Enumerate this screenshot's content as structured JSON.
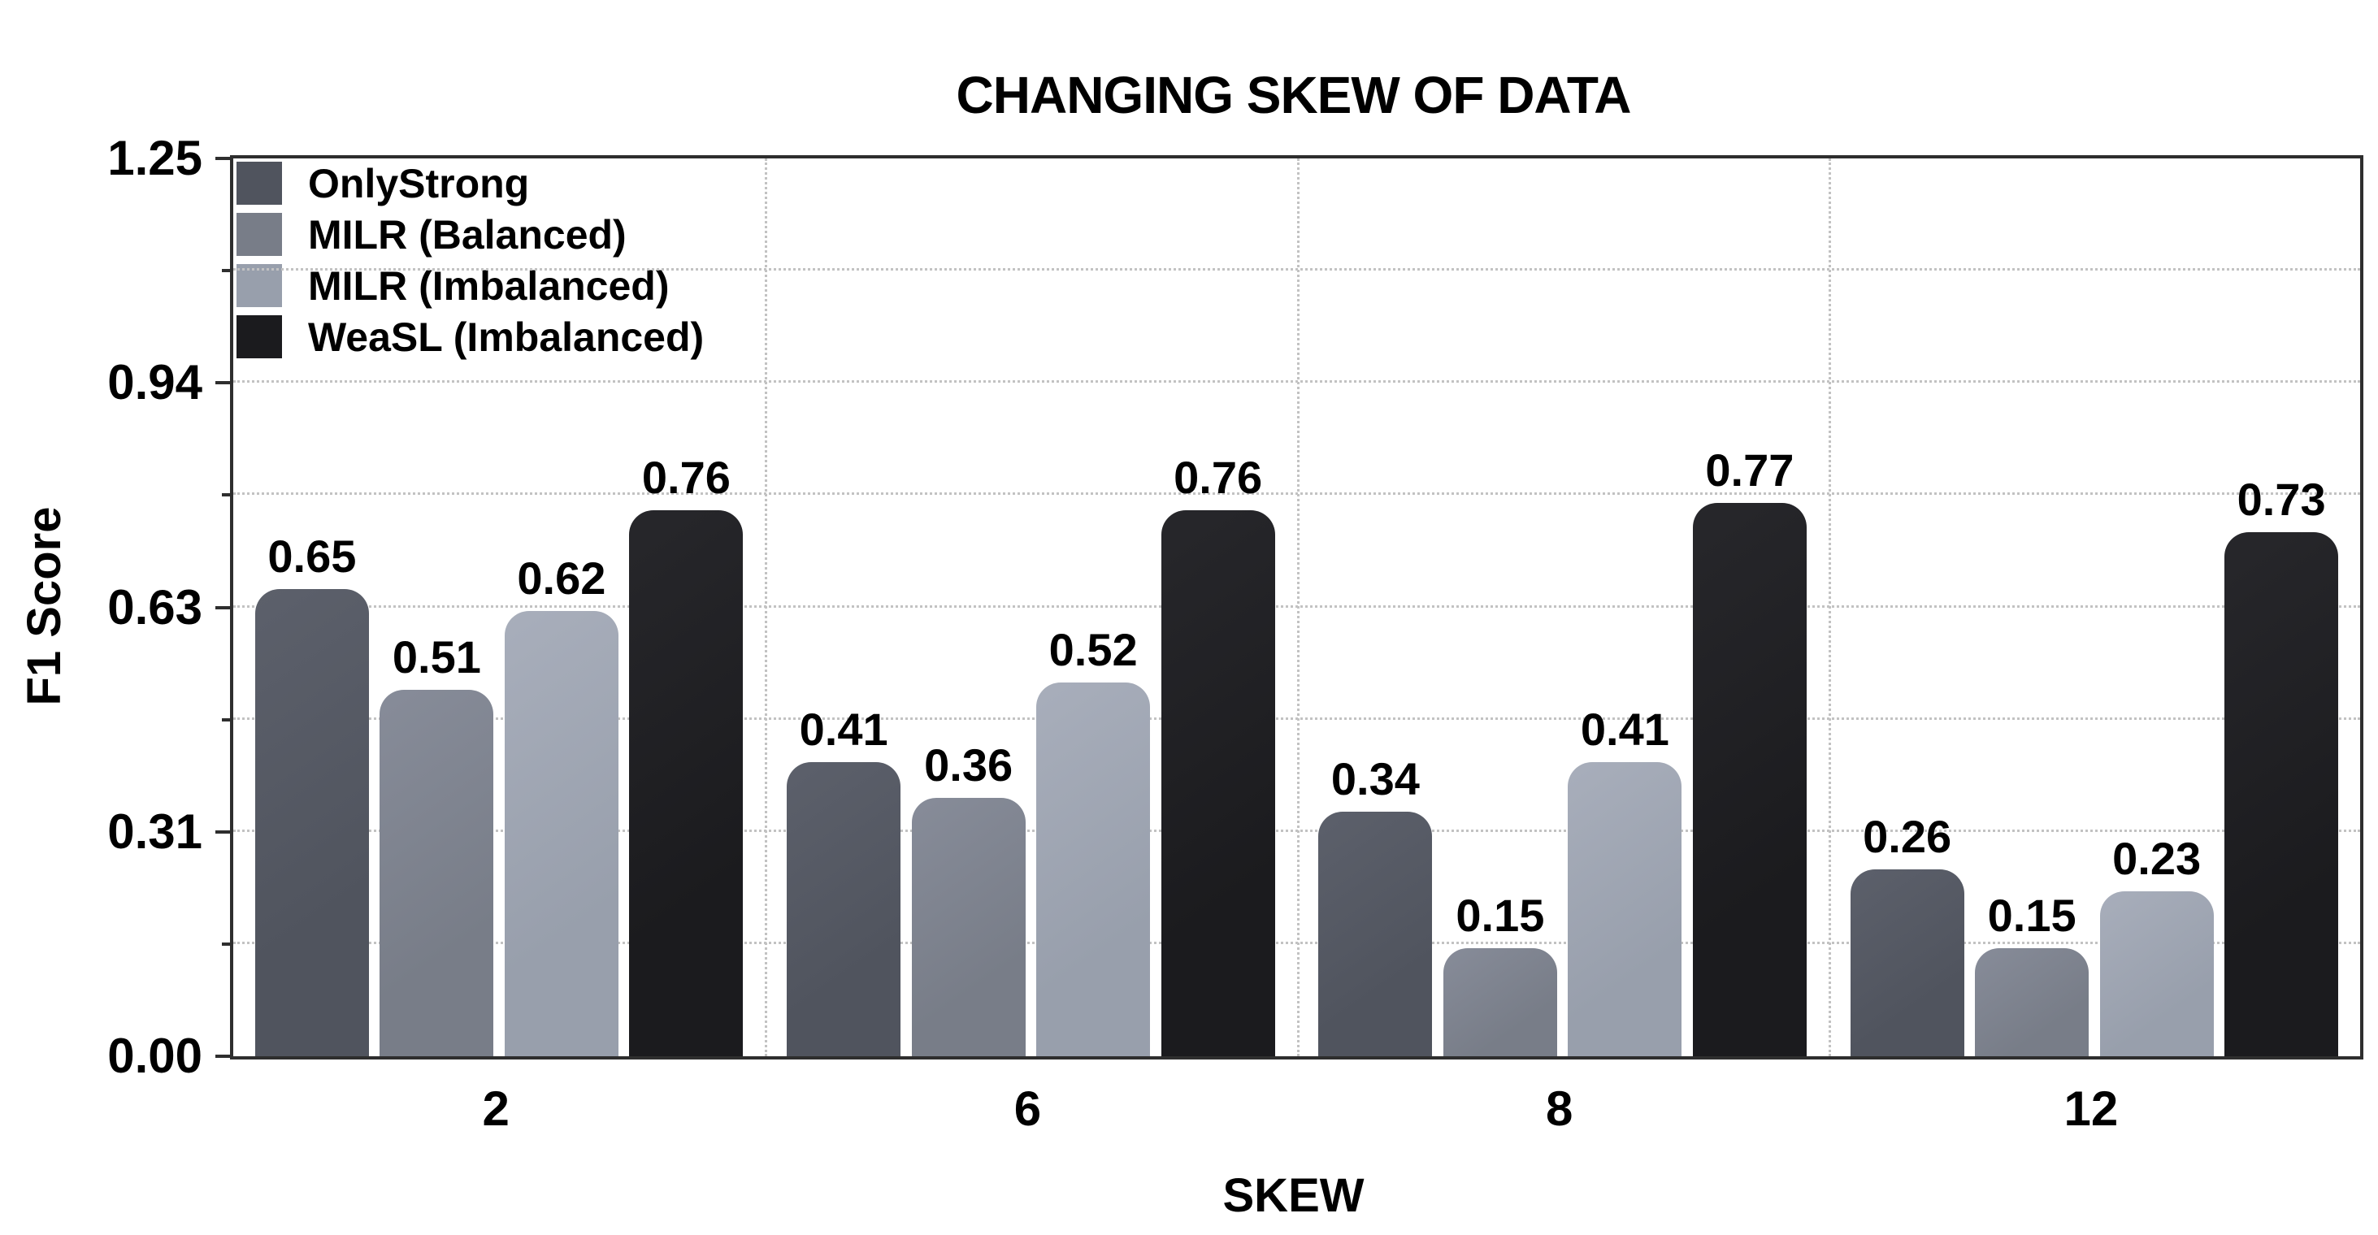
{
  "title": "CHANGING SKEW OF DATA",
  "chart_data": {
    "type": "bar",
    "title": "CHANGING SKEW OF DATA",
    "xlabel": "SKEW",
    "ylabel": "F1 Score",
    "categories": [
      "2",
      "6",
      "8",
      "12"
    ],
    "series": [
      {
        "name": "OnlyStrong",
        "color": "#50545e",
        "color_light": "#5c606b",
        "values": [
          0.65,
          0.41,
          0.34,
          0.26
        ]
      },
      {
        "name": "MILR (Balanced)",
        "color": "#787d88",
        "color_light": "#878c99",
        "values": [
          0.51,
          0.36,
          0.15,
          0.15
        ]
      },
      {
        "name": "MILR (Imbalanced)",
        "color": "#989fac",
        "color_light": "#a8aebb",
        "values": [
          0.62,
          0.52,
          0.41,
          0.23
        ]
      },
      {
        "name": "WeaSL (Imbalanced)",
        "color": "#1b1b1e",
        "color_light": "#27272b",
        "values": [
          0.76,
          0.76,
          0.77,
          0.73
        ]
      }
    ],
    "bar_value_labels": [
      [
        "0.65",
        "0.51",
        "0.62",
        "0.76"
      ],
      [
        "0.41",
        "0.36",
        "0.52",
        "0.76"
      ],
      [
        "0.34",
        "0.15",
        "0.41",
        "0.77"
      ],
      [
        "0.26",
        "0.15",
        "0.23",
        "0.73"
      ]
    ],
    "ylim": [
      0,
      1.25
    ],
    "ytick_labels": [
      "0.00",
      "0.31",
      "0.63",
      "0.94",
      "1.25"
    ],
    "ytick_values": [
      0,
      0.3125,
      0.625,
      0.9375,
      1.25
    ],
    "minor_grid_step": 0.15625,
    "grid_style": "dotted",
    "grid_color": "#c2c2c2",
    "spine_color": "#2e2e2e",
    "legend_position": "upper-left",
    "legend_entries": [
      "OnlyStrong",
      "MILR (Balanced)",
      "MILR (Imbalanced)",
      "WeaSL (Imbalanced)"
    ]
  }
}
